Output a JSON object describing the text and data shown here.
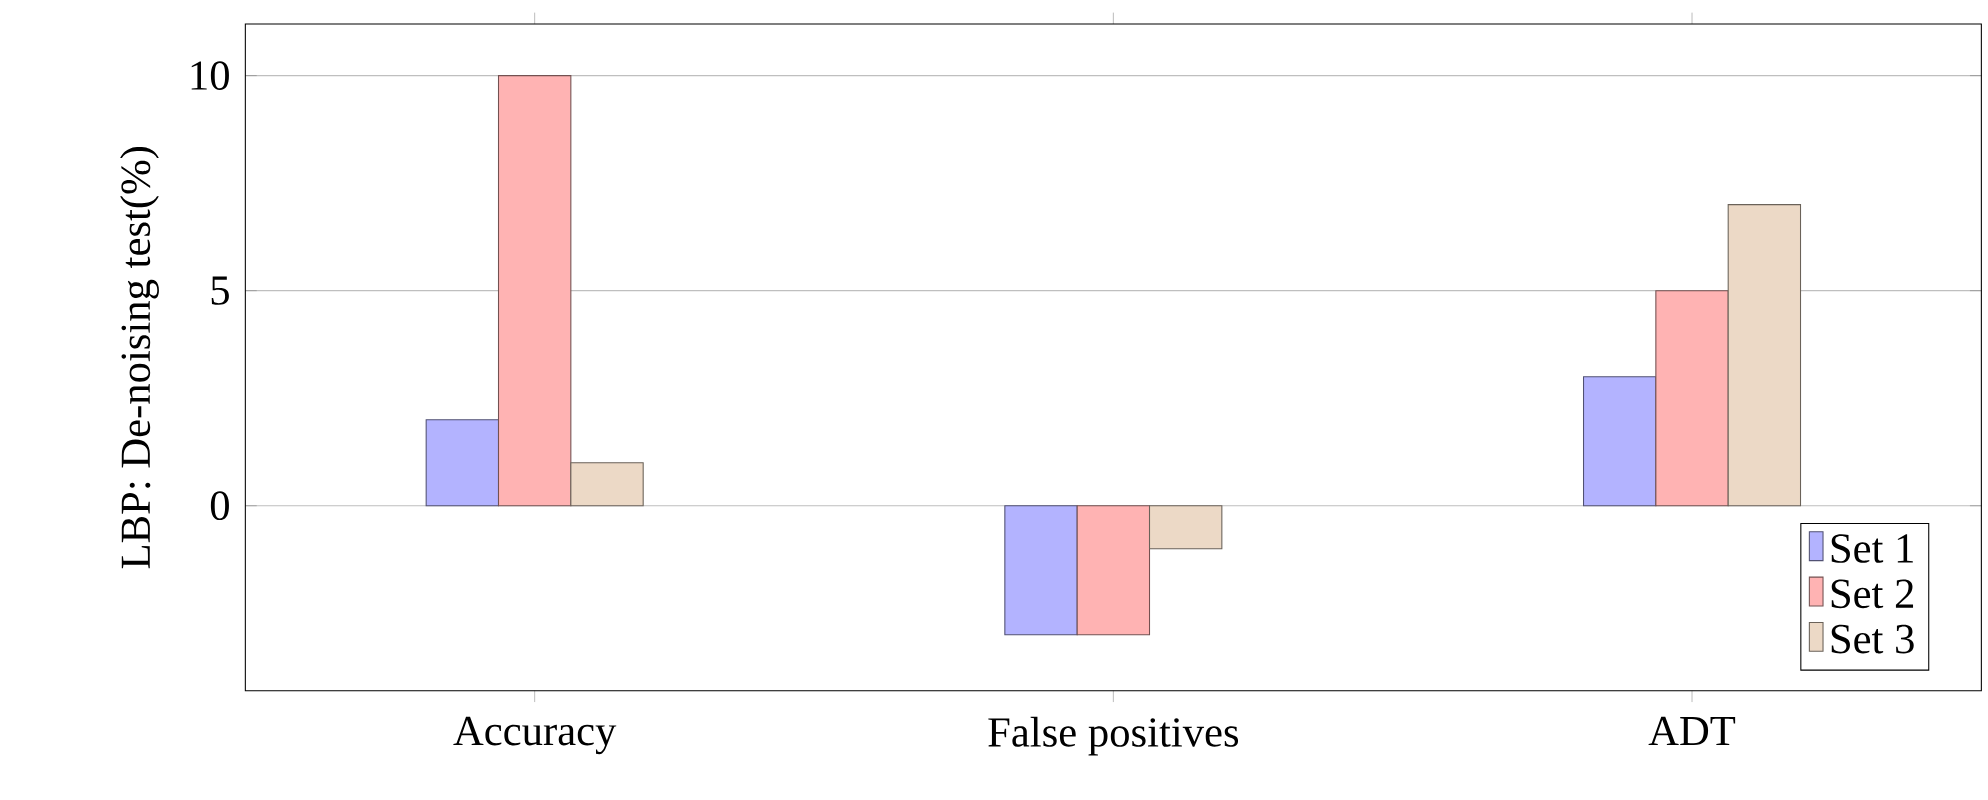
{
  "chart_data": {
    "type": "bar",
    "ylabel": "LBP: De-noising test(%)",
    "categories": [
      "Accuracy",
      "False positives",
      "ADT"
    ],
    "series": [
      {
        "name": "Set 1",
        "color": "#b3b3ff",
        "values": [
          2,
          -3,
          3
        ]
      },
      {
        "name": "Set 2",
        "color": "#ffb3b3",
        "values": [
          10,
          -3,
          5
        ]
      },
      {
        "name": "Set 3",
        "color": "#ecd9c6",
        "values": [
          1,
          -1,
          7
        ]
      }
    ],
    "ylim": [
      -4.3,
      11.2
    ],
    "yticks": [
      0,
      5,
      10
    ],
    "grid": "y",
    "legend": "bottom right"
  }
}
